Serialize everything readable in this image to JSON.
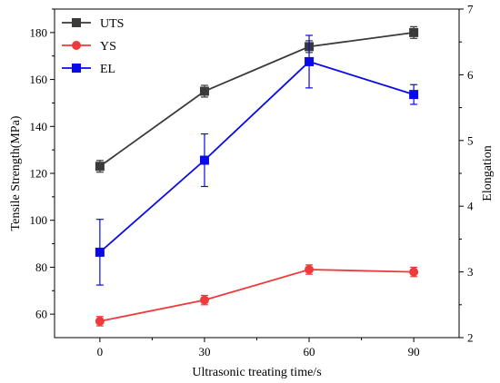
{
  "chart_data": {
    "type": "line",
    "title": "",
    "xlabel": "Ultrasonic treating time/s",
    "ylabel_left": "Tensile Strength(MPa)",
    "ylabel_right": "Elongation",
    "x": [
      0,
      30,
      60,
      90
    ],
    "x_ticks": [
      "0",
      "30",
      "60",
      "90"
    ],
    "xlim": [
      -13,
      103
    ],
    "ylim_left": [
      50,
      190
    ],
    "ylim_right": [
      2,
      7
    ],
    "y_ticks_left": [
      "60",
      "80",
      "100",
      "120",
      "140",
      "160",
      "180"
    ],
    "y_ticks_right": [
      "2",
      "3",
      "4",
      "5",
      "6",
      "7"
    ],
    "legend_position": "top-left",
    "grid": false,
    "series": [
      {
        "name": "UTS",
        "axis": "left",
        "marker": "square",
        "color": "#3a3a3a",
        "values": [
          123,
          155,
          174,
          180
        ],
        "errors": [
          2.5,
          2.5,
          2.5,
          2.5
        ]
      },
      {
        "name": "YS",
        "axis": "left",
        "marker": "circle",
        "color": "#ee3a3a",
        "values": [
          57,
          66,
          79,
          78
        ],
        "errors": [
          2,
          2,
          2,
          2
        ]
      },
      {
        "name": "EL",
        "axis": "right",
        "marker": "square",
        "color": "#0a0ae8",
        "values": [
          3.3,
          4.7,
          6.2,
          5.7
        ],
        "errors": [
          0.5,
          0.4,
          0.4,
          0.15
        ]
      }
    ]
  }
}
